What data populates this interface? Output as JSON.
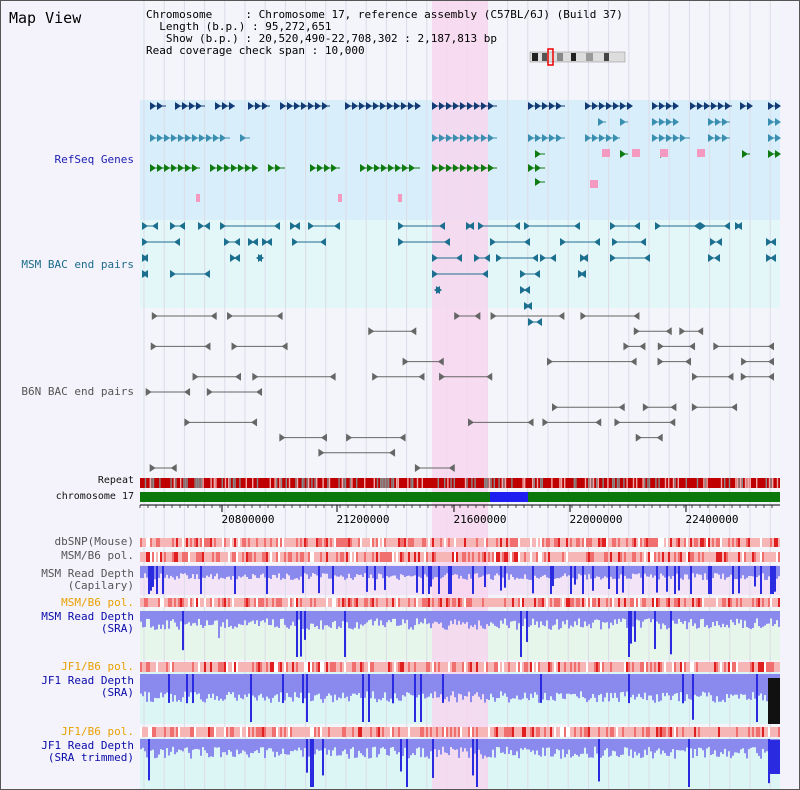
{
  "title": "Map View",
  "info": {
    "chromosome_label": "Chromosome",
    "chromosome_value": "Chromosome 17, reference assembly (C57BL/6J) (Build 37)",
    "length_label": "Length (b.p.)",
    "length_value": "95,272,651",
    "show_label": "Show (b.p.)",
    "show_value": "20,520,490-22,708,302 : 2,187,813 bp",
    "coverage_label": "Read coverage check span",
    "coverage_value": "10,000"
  },
  "tracks": {
    "refseq": "RefSeq Genes",
    "msm_bac": "MSM BAC end pairs",
    "b6n_bac": "B6N BAC end pairs",
    "repeat": "Repeat",
    "chromosome": "chromosome 17",
    "dbsnp": "dbSNP(Mouse)",
    "msm_b6_pol": "MSM/B6 pol.",
    "msm_depth_cap": "MSM Read Depth\n(Capilary)",
    "msm_b6_pol2": "MSM/B6 pol.",
    "msm_depth_sra": "MSM Read Depth\n(SRA)",
    "jf1_b6_pol": "JF1/B6 pol.",
    "jf1_depth_sra": "JF1 Read Depth\n(SRA)",
    "jf1_b6_pol2": "JF1/B6 pol.",
    "jf1_depth_trim": "JF1 Read Depth\n(SRA trimmed)"
  },
  "axis": {
    "ticks": [
      "20800000",
      "21200000",
      "21600000",
      "22000000",
      "22400000"
    ]
  },
  "colors": {
    "highlight": "#f7d6ee",
    "refseq_bg": "#d8eefa",
    "msm_bg": "#e3f6f8",
    "navy": "#123a74",
    "teal": "#3a8fb0",
    "green": "#0f7a0f",
    "pink": "#f49ac1",
    "chrom_green": "#0a780a",
    "chrom_blue": "#1e1ef0"
  }
}
